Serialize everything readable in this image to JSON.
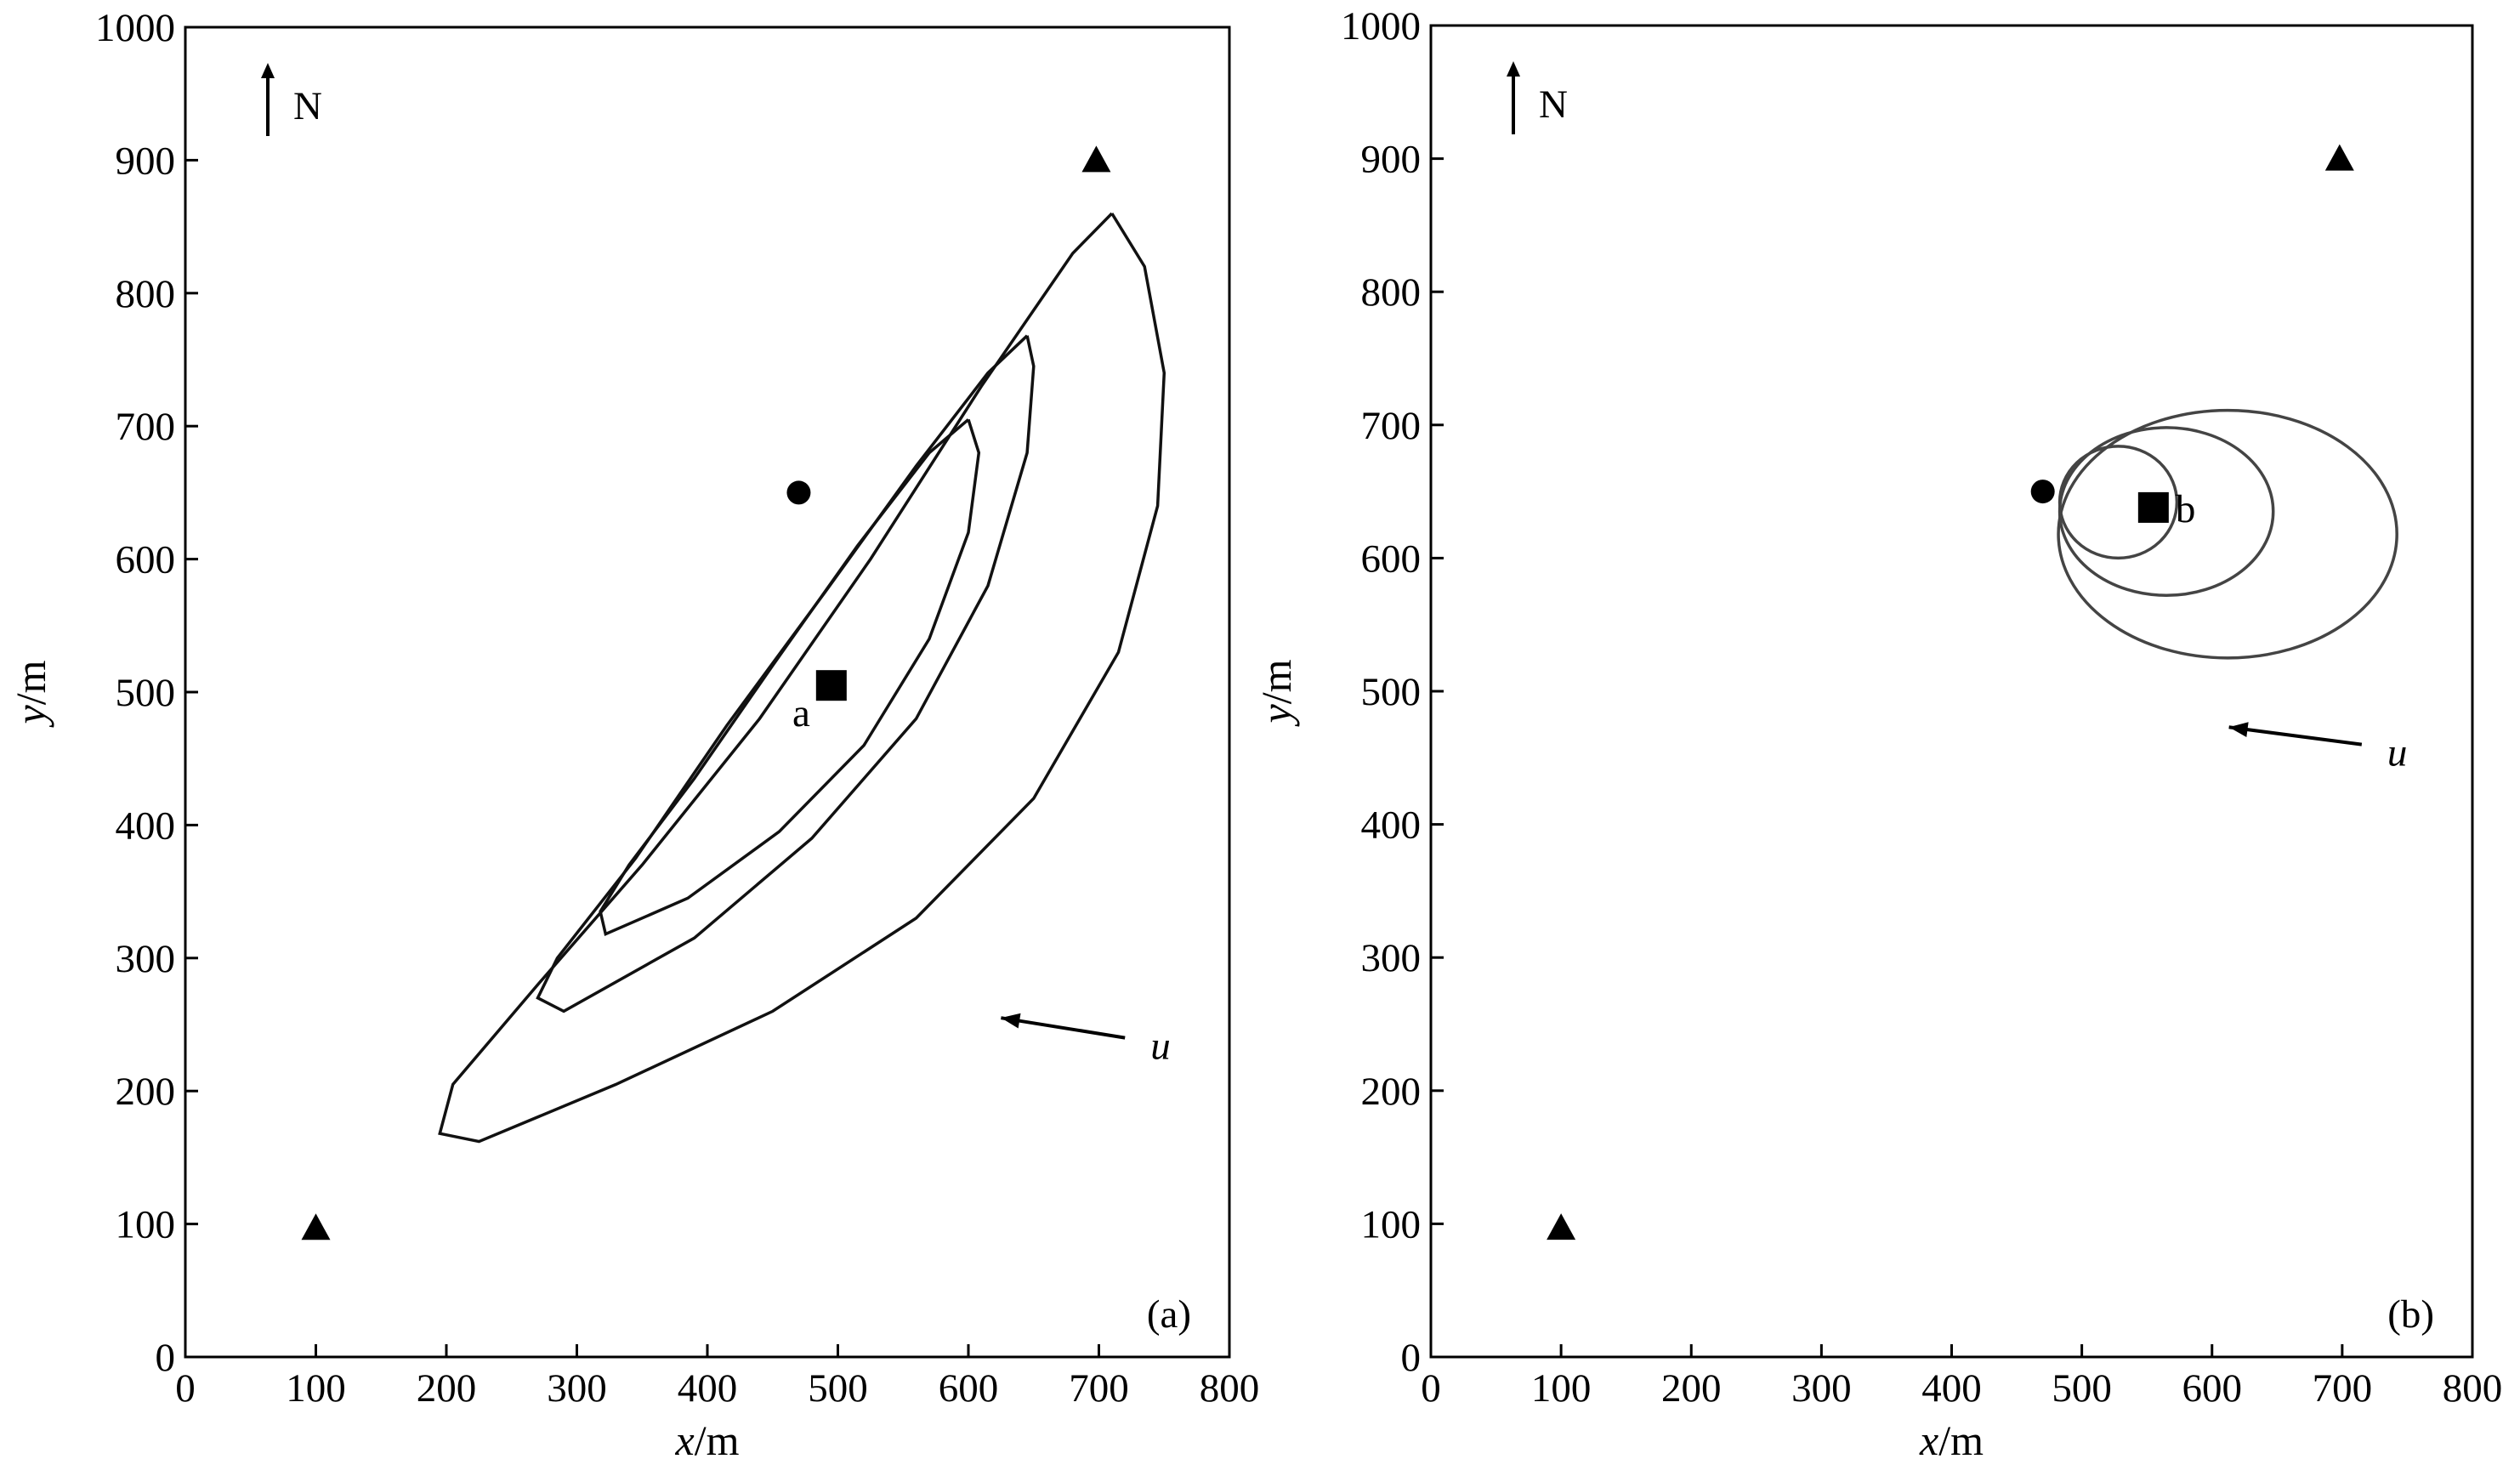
{
  "chart_data": [
    {
      "type": "scatter",
      "panel_label": "(a)",
      "xlabel_var": "x",
      "xlabel_unit": "/m",
      "ylabel_var": "y",
      "ylabel_unit": "/m",
      "xlim": [
        0,
        800
      ],
      "ylim": [
        0,
        1000
      ],
      "x_ticks": [
        "0",
        "100",
        "200",
        "300",
        "400",
        "500",
        "600",
        "700",
        "800"
      ],
      "y_ticks": [
        "0",
        "100",
        "200",
        "300",
        "400",
        "500",
        "600",
        "700",
        "800",
        "900",
        "1000"
      ],
      "grid": false,
      "north_label": "N",
      "wind_label": "u",
      "wind_arrow": {
        "from": [
          720,
          240
        ],
        "to": [
          625,
          255
        ]
      },
      "sensors": [
        {
          "x": 100,
          "y": 97
        },
        {
          "x": 698,
          "y": 900
        }
      ],
      "actual_source": {
        "x": 470,
        "y": 650
      },
      "estimated_source": {
        "x": 495,
        "y": 505,
        "label": "a"
      },
      "contours": [
        [
          [
            710,
            860
          ],
          [
            735,
            820
          ],
          [
            750,
            740
          ],
          [
            745,
            640
          ],
          [
            715,
            530
          ],
          [
            650,
            420
          ],
          [
            560,
            330
          ],
          [
            450,
            260
          ],
          [
            330,
            205
          ],
          [
            225,
            162
          ],
          [
            195,
            168
          ],
          [
            205,
            205
          ],
          [
            270,
            280
          ],
          [
            350,
            370
          ],
          [
            440,
            480
          ],
          [
            525,
            600
          ],
          [
            610,
            730
          ],
          [
            680,
            830
          ],
          [
            710,
            860
          ]
        ],
        [
          [
            645,
            768
          ],
          [
            650,
            745
          ],
          [
            645,
            680
          ],
          [
            615,
            580
          ],
          [
            560,
            480
          ],
          [
            480,
            390
          ],
          [
            390,
            315
          ],
          [
            290,
            260
          ],
          [
            270,
            270
          ],
          [
            285,
            300
          ],
          [
            345,
            375
          ],
          [
            415,
            475
          ],
          [
            490,
            575
          ],
          [
            560,
            670
          ],
          [
            615,
            740
          ],
          [
            645,
            768
          ]
        ],
        [
          [
            600,
            705
          ],
          [
            608,
            680
          ],
          [
            600,
            620
          ],
          [
            570,
            540
          ],
          [
            520,
            460
          ],
          [
            455,
            395
          ],
          [
            385,
            345
          ],
          [
            322,
            318
          ],
          [
            318,
            335
          ],
          [
            340,
            370
          ],
          [
            390,
            435
          ],
          [
            450,
            520
          ],
          [
            515,
            610
          ],
          [
            570,
            680
          ],
          [
            600,
            705
          ]
        ]
      ]
    },
    {
      "type": "scatter",
      "panel_label": "(b)",
      "xlabel_var": "x",
      "xlabel_unit": "/m",
      "ylabel_var": "y",
      "ylabel_unit": "/m",
      "xlim": [
        0,
        800
      ],
      "ylim": [
        0,
        1000
      ],
      "x_ticks": [
        "0",
        "100",
        "200",
        "300",
        "400",
        "500",
        "600",
        "700",
        "800"
      ],
      "y_ticks": [
        "0",
        "100",
        "200",
        "300",
        "400",
        "500",
        "600",
        "700",
        "800",
        "900",
        "1000"
      ],
      "grid": false,
      "north_label": "N",
      "wind_label": "u",
      "wind_arrow": {
        "from": [
          715,
          460
        ],
        "to": [
          613,
          473
        ]
      },
      "sensors": [
        {
          "x": 100,
          "y": 97
        },
        {
          "x": 698,
          "y": 900
        }
      ],
      "actual_source": {
        "x": 470,
        "y": 650
      },
      "estimated_source": {
        "x": 555,
        "y": 638,
        "label": "b"
      },
      "ellipses": [
        {
          "cx": 528,
          "cy": 642,
          "rx": 45,
          "ry": 42
        },
        {
          "cx": 565,
          "cy": 635,
          "rx": 82,
          "ry": 63
        },
        {
          "cx": 612,
          "cy": 618,
          "rx": 130,
          "ry": 93
        }
      ]
    }
  ]
}
